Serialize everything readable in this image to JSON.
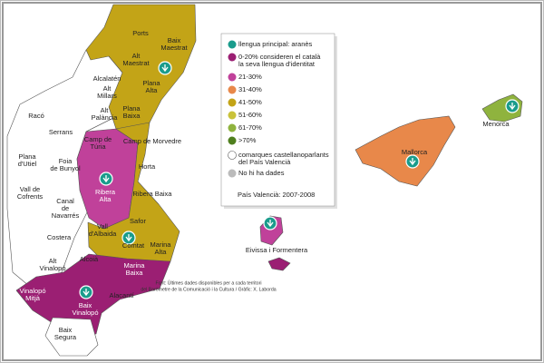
{
  "regions": [
    [
      "Ports"
    ],
    [
      "Baix",
      "Maestrat"
    ],
    [
      "Alt",
      "Maestrat"
    ],
    [
      "Plana",
      "Alta"
    ],
    [
      "Alcalatén"
    ],
    [
      "Alt",
      "Millars"
    ],
    [
      "Alt",
      "Palància"
    ],
    [
      "Plana",
      "Baixa"
    ],
    [
      "Racó"
    ],
    [
      "Serrans"
    ],
    [
      "Camp de",
      "Túria"
    ],
    [
      "Camp de Morvedre"
    ],
    [
      "Plana",
      "d'Utiel"
    ],
    [
      "Foia",
      "de Bunyol"
    ],
    [
      "Horta"
    ],
    [
      "Ribera",
      "Alta"
    ],
    [
      "Ribera Baixa"
    ],
    [
      "Vall de",
      "Cofrents"
    ],
    [
      "Canal",
      "de",
      "Navarrés"
    ],
    [
      "Safor"
    ],
    [
      "Vall",
      "d'Albaida"
    ],
    [
      "Costera"
    ],
    [
      "Comtat"
    ],
    [
      "Marina",
      "Alta"
    ],
    [
      "Alcoià"
    ],
    [
      "Alt",
      "Vinalopó"
    ],
    [
      "Marina",
      "Baixa"
    ],
    [
      "Vinalopó",
      "Mitjà"
    ],
    [
      "Alacantí"
    ],
    [
      "Baix",
      "Vinalopó"
    ],
    [
      "Baix",
      "Segura"
    ]
  ],
  "islands": [
    "Mallorca",
    "Menorca",
    "Eivissa i Formentera"
  ],
  "legend": {
    "items": [
      [
        "llengua principal: aranès"
      ],
      [
        "0-20% consideren el català",
        "la seva llengua d'identitat"
      ],
      [
        "21-30%"
      ],
      [
        "31-40%"
      ],
      [
        "41-50%"
      ],
      [
        "51-60%"
      ],
      [
        "61-70%"
      ],
      [
        ">70%"
      ],
      [
        "comarques castellanoparlants",
        "del País Valencià"
      ],
      [
        "No hi ha dades"
      ]
    ],
    "footer": "País Valencià: 2007-2008"
  },
  "source": [
    "Font: Últimes dades disponibles per a cada territori",
    "del Baròmetre de la Comunicació i la Cultura / Gràfic: X. Laborda"
  ]
}
